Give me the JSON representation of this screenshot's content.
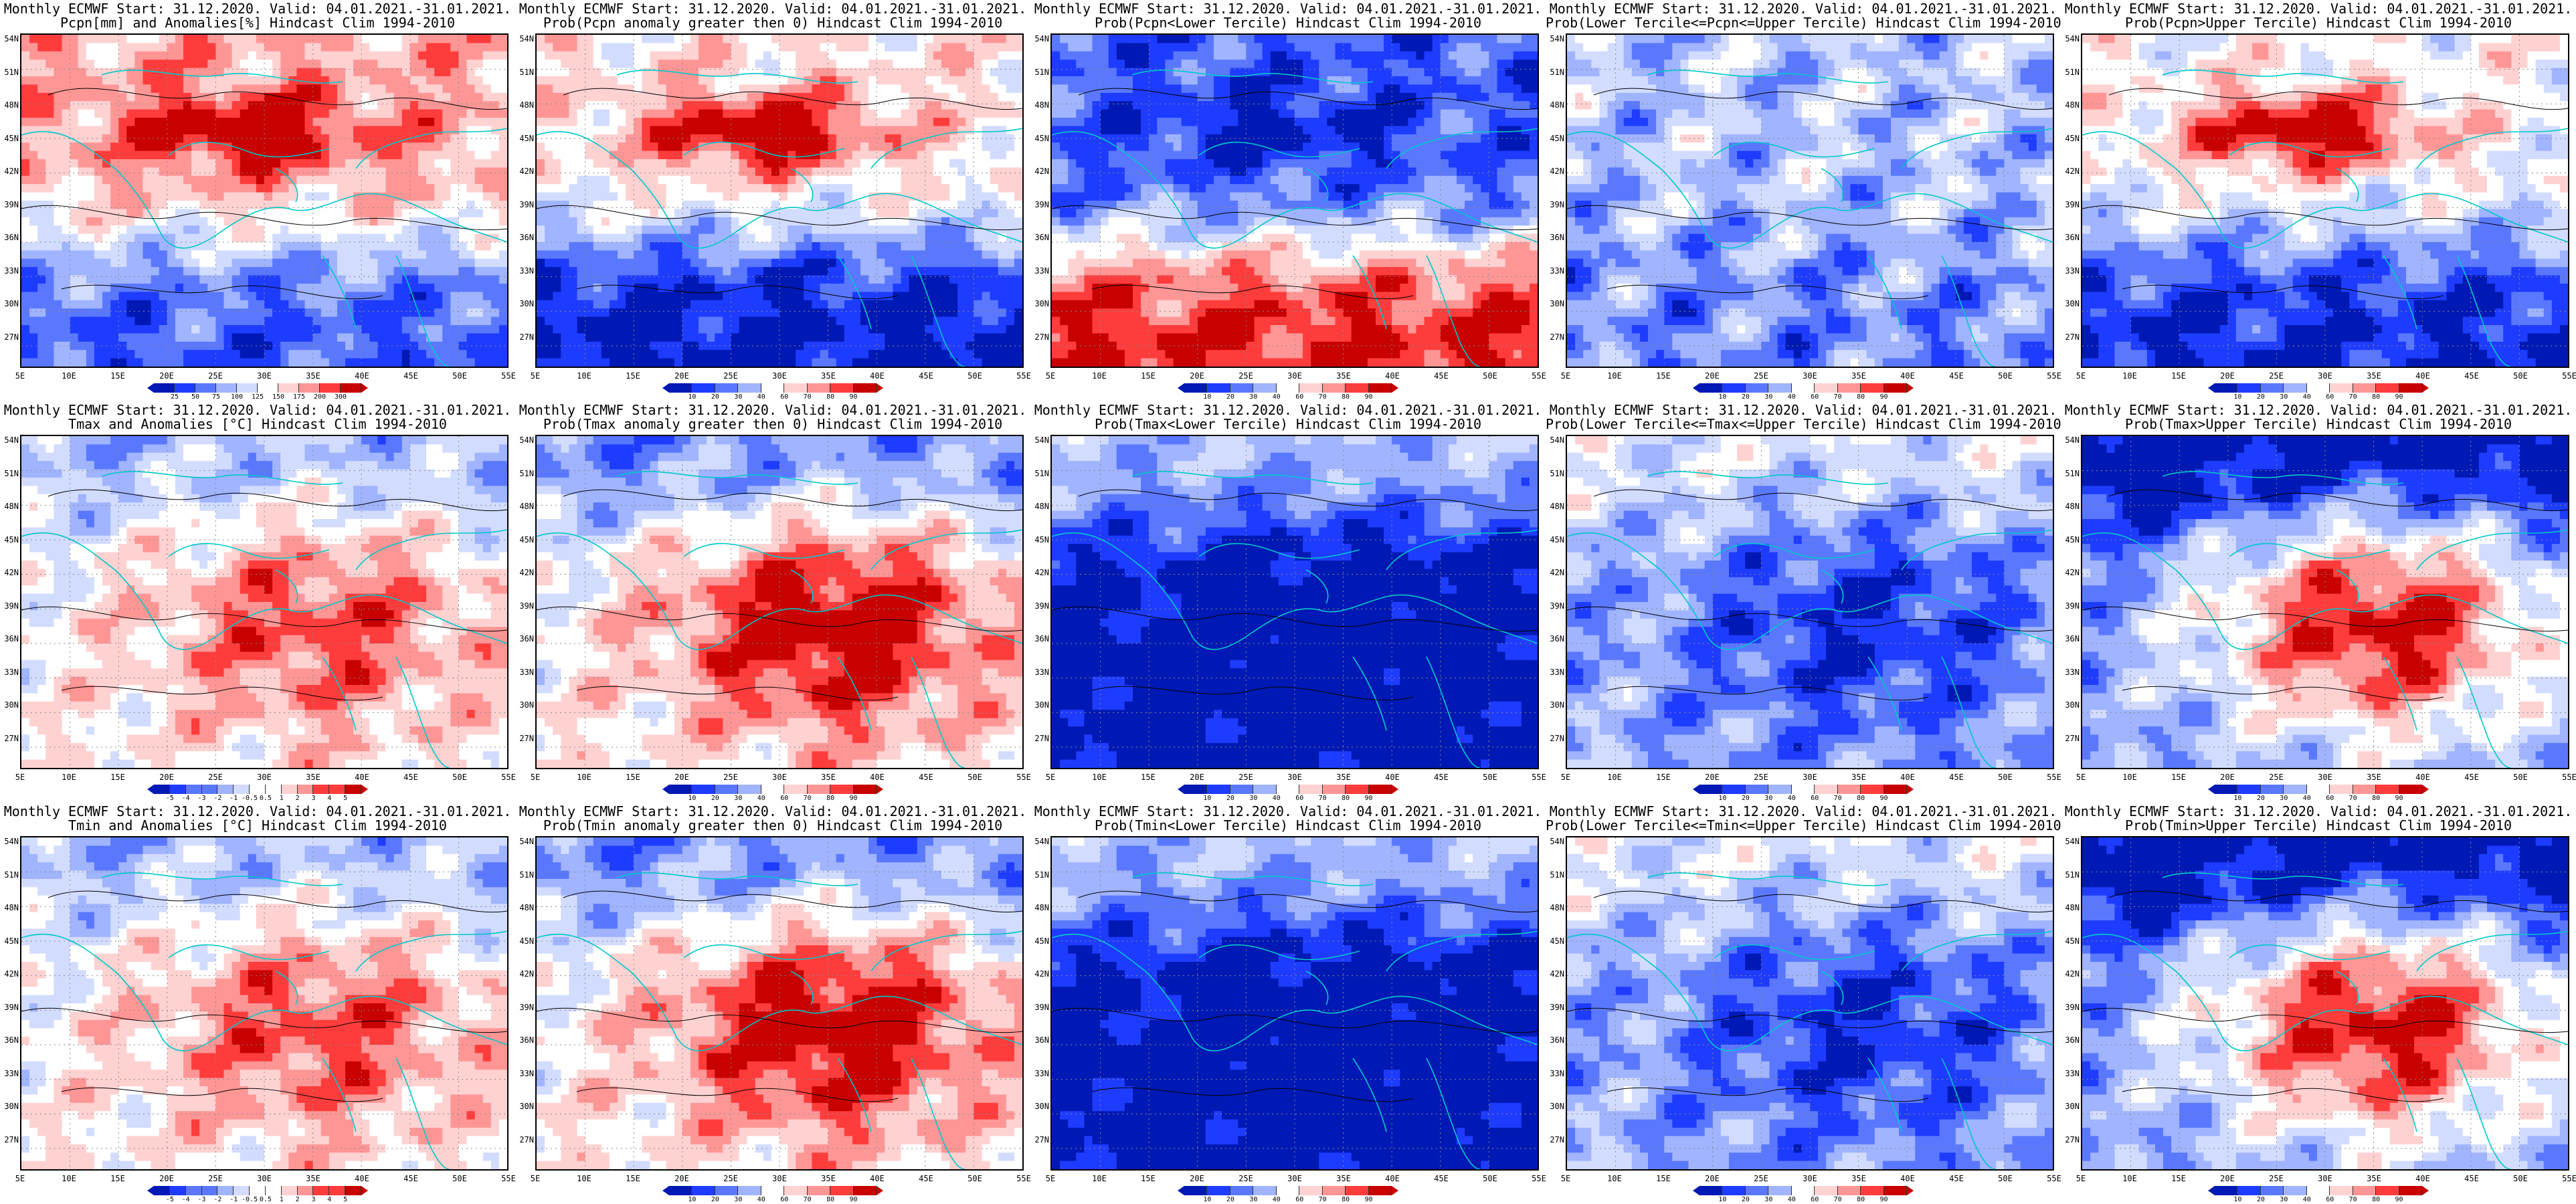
{
  "panels": [
    {
      "id": "p1",
      "title1": "Monthly ECMWF Start: 31.12.2020. Valid: 04.01.2021.-31.01.2021.",
      "title2": "Pcpn[mm] and Anomalies[%] Hindcast Clim 1994-2010",
      "colorbar": [
        "25",
        "50",
        "75",
        "100",
        "125",
        "150",
        "175",
        "200",
        "300"
      ],
      "palette": "anom",
      "pattern": "pcpn_anom"
    },
    {
      "id": "p2",
      "title1": "Monthly ECMWF Start: 31.12.2020. Valid: 04.01.2021.-31.01.2021.",
      "title2": "Prob(Pcpn anomaly greater then 0) Hindcast Clim 1994-2010",
      "colorbar": [
        "10",
        "20",
        "30",
        "40",
        "60",
        "70",
        "80",
        "90"
      ],
      "palette": "prob",
      "pattern": "pcpn_gt0"
    },
    {
      "id": "p3",
      "title1": "Monthly ECMWF Start: 31.12.2020. Valid: 04.01.2021.-31.01.2021.",
      "title2": "Prob(Pcpn<Lower Tercile) Hindcast Clim 1994-2010",
      "colorbar": [
        "10",
        "20",
        "30",
        "40",
        "60",
        "70",
        "80",
        "90"
      ],
      "palette": "prob",
      "pattern": "pcpn_low"
    },
    {
      "id": "p4",
      "title1": "Monthly ECMWF Start: 31.12.2020. Valid: 04.01.2021.-31.01.2021.",
      "title2": "Prob(Lower Tercile<=Pcpn<=Upper Tercile) Hindcast Clim 1994-2010",
      "colorbar": [
        "10",
        "20",
        "30",
        "40",
        "60",
        "70",
        "80",
        "90"
      ],
      "palette": "prob",
      "pattern": "pcpn_mid"
    },
    {
      "id": "p5",
      "title1": "Monthly ECMWF Start: 31.12.2020. Valid: 04.01.2021.-31.01.2021.",
      "title2": "Prob(Pcpn>Upper Tercile) Hindcast Clim 1994-2010",
      "colorbar": [
        "10",
        "20",
        "30",
        "40",
        "60",
        "70",
        "80",
        "90"
      ],
      "palette": "prob",
      "pattern": "pcpn_up"
    },
    {
      "id": "p6",
      "title1": "Monthly ECMWF Start: 31.12.2020. Valid: 04.01.2021.-31.01.2021.",
      "title2": "Tmax and Anomalies [°C] Hindcast Clim 1994-2010",
      "colorbar": [
        "-5",
        "-4",
        "-3",
        "-2",
        "-1",
        "-0.5",
        "0.5",
        "1",
        "2",
        "3",
        "4",
        "5"
      ],
      "palette": "anom",
      "pattern": "t_anom"
    },
    {
      "id": "p7",
      "title1": "Monthly ECMWF Start: 31.12.2020. Valid: 04.01.2021.-31.01.2021.",
      "title2": "Prob(Tmax anomaly greater then 0) Hindcast Clim 1994-2010",
      "colorbar": [
        "10",
        "20",
        "30",
        "40",
        "60",
        "70",
        "80",
        "90"
      ],
      "palette": "prob",
      "pattern": "t_gt0"
    },
    {
      "id": "p8",
      "title1": "Monthly ECMWF Start: 31.12.2020. Valid: 04.01.2021.-31.01.2021.",
      "title2": "Prob(Tmax<Lower Tercile) Hindcast Clim 1994-2010",
      "colorbar": [
        "10",
        "20",
        "30",
        "40",
        "60",
        "70",
        "80",
        "90"
      ],
      "palette": "prob",
      "pattern": "t_low"
    },
    {
      "id": "p9",
      "title1": "Monthly ECMWF Start: 31.12.2020. Valid: 04.01.2021.-31.01.2021.",
      "title2": "Prob(Lower Tercile<=Tmax<=Upper Tercile) Hindcast Clim 1994-2010",
      "colorbar": [
        "10",
        "20",
        "30",
        "40",
        "60",
        "70",
        "80",
        "90"
      ],
      "palette": "prob",
      "pattern": "t_mid"
    },
    {
      "id": "p10",
      "title1": "Monthly ECMWF Start: 31.12.2020. Valid: 04.01.2021.-31.01.2021.",
      "title2": "Prob(Tmax>Upper Tercile) Hindcast Clim 1994-2010",
      "colorbar": [
        "10",
        "20",
        "30",
        "40",
        "60",
        "70",
        "80",
        "90"
      ],
      "palette": "prob",
      "pattern": "t_up"
    },
    {
      "id": "p11",
      "title1": "Monthly ECMWF Start: 31.12.2020. Valid: 04.01.2021.-31.01.2021.",
      "title2": "Tmin and Anomalies [°C] Hindcast Clim 1994-2010",
      "colorbar": [
        "-5",
        "-4",
        "-3",
        "-2",
        "-1",
        "-0.5",
        "0.5",
        "1",
        "2",
        "3",
        "4",
        "5"
      ],
      "palette": "anom",
      "pattern": "t_anom"
    },
    {
      "id": "p12",
      "title1": "Monthly ECMWF Start: 31.12.2020. Valid: 04.01.2021.-31.01.2021.",
      "title2": "Prob(Tmin anomaly greater then 0) Hindcast Clim 1994-2010",
      "colorbar": [
        "10",
        "20",
        "30",
        "40",
        "60",
        "70",
        "80",
        "90"
      ],
      "palette": "prob",
      "pattern": "t_gt0"
    },
    {
      "id": "p13",
      "title1": "Monthly ECMWF Start: 31.12.2020. Valid: 04.01.2021.-31.01.2021.",
      "title2": "Prob(Tmin<Lower Tercile) Hindcast Clim 1994-2010",
      "colorbar": [
        "10",
        "20",
        "30",
        "40",
        "60",
        "70",
        "80",
        "90"
      ],
      "palette": "prob",
      "pattern": "t_low"
    },
    {
      "id": "p14",
      "title1": "Monthly ECMWF Start: 31.12.2020. Valid: 04.01.2021.-31.01.2021.",
      "title2": "Prob(Lower Tercile<=Tmin<=Upper Tercile) Hindcast Clim 1994-2010",
      "colorbar": [
        "10",
        "20",
        "30",
        "40",
        "60",
        "70",
        "80",
        "90"
      ],
      "palette": "prob",
      "pattern": "t_mid"
    },
    {
      "id": "p15",
      "title1": "Monthly ECMWF Start: 31.12.2020. Valid: 04.01.2021.-31.01.2021.",
      "title2": "Prob(Tmin>Upper Tercile) Hindcast Clim 1994-2010",
      "colorbar": [
        "10",
        "20",
        "30",
        "40",
        "60",
        "70",
        "80",
        "90"
      ],
      "palette": "prob",
      "pattern": "t_up"
    }
  ],
  "lat_labels": [
    "54N",
    "51N",
    "48N",
    "45N",
    "42N",
    "39N",
    "36N",
    "33N",
    "30N",
    "27N"
  ],
  "lon_labels": [
    "5E",
    "10E",
    "15E",
    "20E",
    "25E",
    "30E",
    "35E",
    "40E",
    "45E",
    "50E",
    "55E"
  ],
  "colors": {
    "dark_blue": "#0019b4",
    "blue": "#1e3cff",
    "mid_blue": "#5a78ff",
    "light_blue": "#a0b4ff",
    "pale_blue": "#d2dcff",
    "white": "#ffffff",
    "pale_red": "#ffd2d2",
    "light_red": "#ff9696",
    "red": "#ff3c3c",
    "dark_red": "#c80000",
    "coast": "#00c8c8",
    "contour": "#000000"
  }
}
